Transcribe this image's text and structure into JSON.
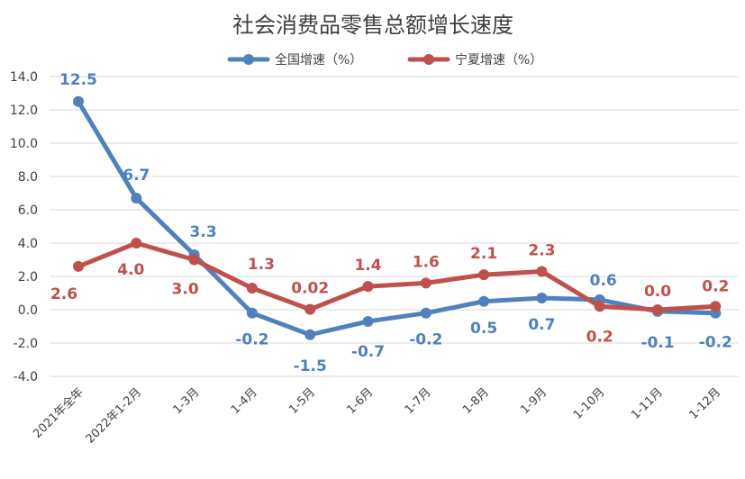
{
  "chart_data": {
    "type": "line",
    "title": "社会消费品零售总额增长速度",
    "categories": [
      "2021年全年",
      "2022年1-2月",
      "1-3月",
      "1-4月",
      "1-5月",
      "1-6月",
      "1-7月",
      "1-8月",
      "1-9月",
      "1-10月",
      "1-11月",
      "1-12月"
    ],
    "series": [
      {
        "name": "全国增速（%）",
        "color": "#4f81bd",
        "values": [
          12.5,
          6.7,
          3.3,
          -0.2,
          -1.5,
          -0.7,
          -0.2,
          0.5,
          0.7,
          0.6,
          -0.1,
          -0.2
        ],
        "labels": [
          "12.5",
          "6.7",
          "3.3",
          "-0.2",
          "-1.5",
          "-0.7",
          "-0.2",
          "0.5",
          "0.7",
          "0.6",
          "-0.1",
          "-0.2"
        ]
      },
      {
        "name": "宁夏增速（%）",
        "color": "#c0504d",
        "values": [
          2.6,
          4.0,
          3.0,
          1.3,
          0.02,
          1.4,
          1.6,
          2.1,
          2.3,
          0.2,
          0.0,
          0.2
        ],
        "labels": [
          "2.6",
          "4.0",
          "3.0",
          "1.3",
          "0.02",
          "1.4",
          "1.6",
          "2.1",
          "2.3",
          "0.2",
          "0.0",
          "0.2"
        ]
      }
    ],
    "ylim": [
      -4.0,
      14.0
    ],
    "yticks": [
      "-4.0",
      "-2.0",
      "0.0",
      "2.0",
      "4.0",
      "6.0",
      "8.0",
      "10.0",
      "12.0",
      "14.0"
    ],
    "grid": true,
    "legend_position": "top"
  }
}
